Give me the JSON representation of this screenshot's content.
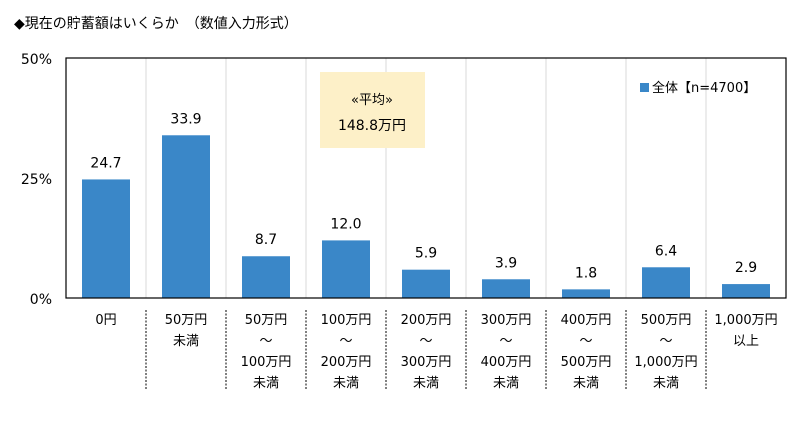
{
  "chart_data": {
    "type": "bar",
    "title": "◆現在の貯蓄額はいくらか　（数値入力形式）",
    "categories": [
      [
        "0円"
      ],
      [
        "50万円",
        "未満"
      ],
      [
        "50万円",
        "～",
        "100万円",
        "未満"
      ],
      [
        "100万円",
        "～",
        "200万円",
        "未満"
      ],
      [
        "200万円",
        "～",
        "300万円",
        "未満"
      ],
      [
        "300万円",
        "～",
        "400万円",
        "未満"
      ],
      [
        "400万円",
        "～",
        "500万円",
        "未満"
      ],
      [
        "500万円",
        "～",
        "1,000万円",
        "未満"
      ],
      [
        "1,000万円",
        "以上"
      ]
    ],
    "series": [
      {
        "name": "全体【n=4700】",
        "values": [
          24.7,
          33.9,
          8.7,
          12.0,
          5.9,
          3.9,
          1.8,
          6.4,
          2.9
        ],
        "color": "#3a87c8"
      }
    ],
    "data_labels": [
      "24.7",
      "33.9",
      "8.7",
      "12.0",
      "5.9",
      "3.9",
      "1.8",
      "6.4",
      "2.9"
    ],
    "ylim": [
      0,
      50
    ],
    "yticks": [
      "0%",
      "25%",
      "50%"
    ],
    "ytick_values": [
      0,
      25,
      50
    ],
    "grid": "vertical",
    "legend_placement": "top-right",
    "annotation": {
      "line1": "«平均»",
      "line2": "148.8万円",
      "background": "#fdf0c8"
    }
  }
}
